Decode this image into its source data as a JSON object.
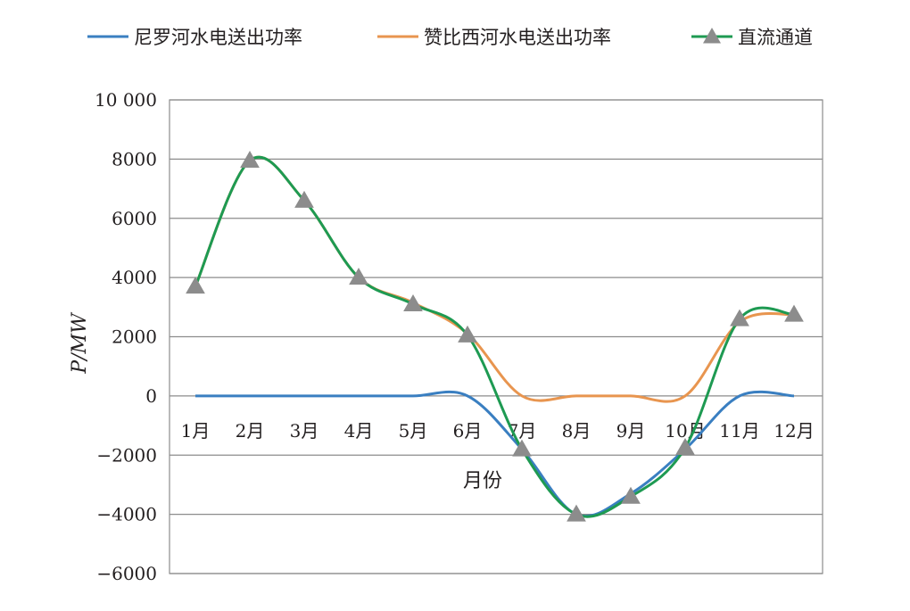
{
  "chart_data": {
    "type": "line",
    "title": "",
    "xlabel": "月份",
    "ylabel": "P/MW",
    "ylim": [
      -6000,
      10000
    ],
    "yticks": [
      10000,
      8000,
      6000,
      4000,
      2000,
      0,
      -2000,
      -4000,
      -6000
    ],
    "ytick_labels": [
      "10 000",
      "8000",
      "6000",
      "4000",
      "2000",
      "0",
      "−2000",
      "−4000",
      "−6000"
    ],
    "categories": [
      "1月",
      "2月",
      "3月",
      "4月",
      "5月",
      "6月",
      "7月",
      "8月",
      "9月",
      "10月",
      "11月",
      "12月"
    ],
    "grid": true,
    "legend": "top",
    "series": [
      {
        "name": "尼罗河水电送出功率",
        "color": "#3a7fc1",
        "marker": "none",
        "values": [
          0,
          0,
          0,
          0,
          0,
          0,
          -1800,
          -4000,
          -3300,
          -1800,
          0,
          0
        ]
      },
      {
        "name": "赞比西河水电送出功率",
        "color": "#e8954f",
        "marker": "none",
        "values": [
          3700,
          7950,
          6600,
          4000,
          3150,
          2100,
          0,
          0,
          0,
          0,
          2500,
          2750
        ]
      },
      {
        "name": "直流通道",
        "color": "#1e9a52",
        "marker": "triangle",
        "values": [
          3700,
          7950,
          6600,
          4000,
          3100,
          2050,
          -1800,
          -4000,
          -3400,
          -1750,
          2600,
          2750
        ]
      }
    ]
  }
}
